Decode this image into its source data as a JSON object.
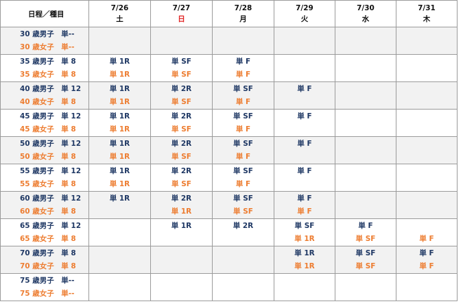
{
  "header": {
    "corner": "日程／種目",
    "days": [
      {
        "date": "7/26",
        "weekday": "土",
        "red": false
      },
      {
        "date": "7/27",
        "weekday": "日",
        "red": true
      },
      {
        "date": "7/28",
        "weekday": "月",
        "red": false
      },
      {
        "date": "7/29",
        "weekday": "火",
        "red": false
      },
      {
        "date": "7/30",
        "weekday": "水",
        "red": false
      },
      {
        "date": "7/31",
        "weekday": "木",
        "red": false
      }
    ]
  },
  "rows": [
    {
      "men_label": "30 歳男子　単--",
      "women_label": "30 歳女子　単--",
      "shaded": true,
      "men": [
        "",
        "",
        "",
        "",
        "",
        ""
      ],
      "women": [
        "",
        "",
        "",
        "",
        "",
        ""
      ]
    },
    {
      "men_label": "35 歳男子　単 8",
      "women_label": "35 歳女子　単 8",
      "shaded": false,
      "men": [
        "単 1R",
        "単 SF",
        "単 F",
        "",
        "",
        ""
      ],
      "women": [
        "単 1R",
        "単 SF",
        "単 F",
        "",
        "",
        ""
      ]
    },
    {
      "men_label": "40 歳男子　単 12",
      "women_label": "40 歳女子　単 8",
      "shaded": true,
      "men": [
        "単 1R",
        "単 2R",
        "単 SF",
        "単 F",
        "",
        ""
      ],
      "women": [
        "単 1R",
        "単 SF",
        "単 F",
        "",
        "",
        ""
      ]
    },
    {
      "men_label": "45 歳男子　単 12",
      "women_label": "45 歳女子　単 8",
      "shaded": false,
      "men": [
        "単 1R",
        "単 2R",
        "単 SF",
        "単 F",
        "",
        ""
      ],
      "women": [
        "単 1R",
        "単 SF",
        "単 F",
        "",
        "",
        ""
      ]
    },
    {
      "men_label": "50 歳男子　単 12",
      "women_label": "50 歳女子　単 8",
      "shaded": true,
      "men": [
        "単 1R",
        "単 2R",
        "単 SF",
        "単 F",
        "",
        ""
      ],
      "women": [
        "単 1R",
        "単 SF",
        "単 F",
        "",
        "",
        ""
      ]
    },
    {
      "men_label": "55 歳男子　単 12",
      "women_label": "55 歳女子　単 8",
      "shaded": false,
      "men": [
        "単 1R",
        "単 2R",
        "単 SF",
        "単 F",
        "",
        ""
      ],
      "women": [
        "単 1R",
        "単 SF",
        "単 F",
        "",
        "",
        ""
      ]
    },
    {
      "men_label": "60 歳男子　単 12",
      "women_label": "60 歳女子　単 8",
      "shaded": true,
      "men": [
        "単 1R",
        "単 2R",
        "単 SF",
        "単 F",
        "",
        ""
      ],
      "women": [
        "",
        "単 1R",
        "単 SF",
        "単 F",
        "",
        ""
      ]
    },
    {
      "men_label": "65 歳男子　単 12",
      "women_label": "65 歳女子　単 8",
      "shaded": false,
      "men": [
        "",
        "単 1R",
        "単 2R",
        "単 SF",
        "単 F",
        ""
      ],
      "women": [
        "",
        "",
        "",
        "単 1R",
        "単 SF",
        "単 F"
      ]
    },
    {
      "men_label": "70 歳男子　単 8",
      "women_label": "70 歳女子　単 8",
      "shaded": true,
      "men": [
        "",
        "",
        "",
        "単 1R",
        "単 SF",
        "単 F"
      ],
      "women": [
        "",
        "",
        "",
        "単 1R",
        "単 SF",
        "単 F"
      ]
    },
    {
      "men_label": "75 歳男子　単--",
      "women_label": "75 歳女子　単--",
      "shaded": false,
      "men": [
        "",
        "",
        "",
        "",
        "",
        ""
      ],
      "women": [
        "",
        "",
        "",
        "",
        "",
        ""
      ]
    }
  ]
}
